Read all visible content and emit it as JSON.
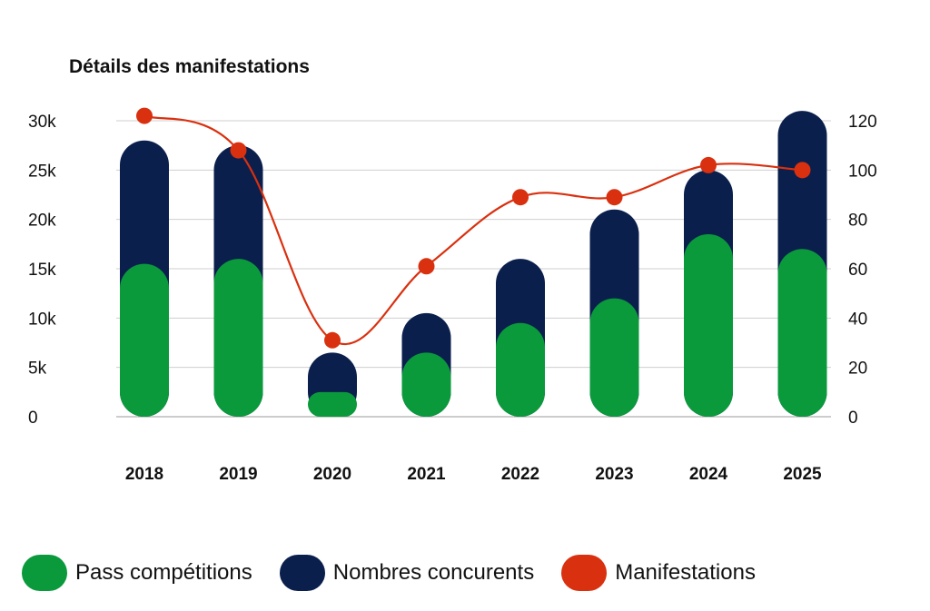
{
  "chart_data": {
    "type": "bar",
    "title": "Détails des manifestations",
    "categories": [
      "2018",
      "2019",
      "2020",
      "2021",
      "2022",
      "2023",
      "2024",
      "2025"
    ],
    "y_left": {
      "ticks": [
        "0",
        "5k",
        "10k",
        "15k",
        "20k",
        "25k",
        "30k"
      ],
      "tick_values": [
        0,
        5000,
        10000,
        15000,
        20000,
        25000,
        30000
      ],
      "ylim": [
        0,
        30000
      ]
    },
    "y_right": {
      "ticks": [
        "0",
        "20",
        "40",
        "60",
        "80",
        "100",
        "120"
      ],
      "tick_values": [
        0,
        20,
        40,
        60,
        80,
        100,
        120
      ],
      "ylim": [
        0,
        120
      ]
    },
    "series": [
      {
        "name": "Pass compétitions",
        "kind": "bar",
        "axis": "left",
        "color": "#0a9a3c",
        "values": [
          15500,
          16000,
          2500,
          6500,
          9500,
          12000,
          18500,
          17000
        ]
      },
      {
        "name": "Nombres concurents",
        "kind": "bar",
        "axis": "left",
        "color": "#0b1f4d",
        "values": [
          28000,
          27500,
          6500,
          10500,
          16000,
          21000,
          25000,
          31000
        ]
      },
      {
        "name": "Manifestations",
        "kind": "line",
        "axis": "right",
        "color": "#d9300f",
        "values": [
          122,
          108,
          31,
          61,
          89,
          89,
          102,
          100
        ]
      }
    ],
    "legend_position": "bottom",
    "grid": true
  }
}
